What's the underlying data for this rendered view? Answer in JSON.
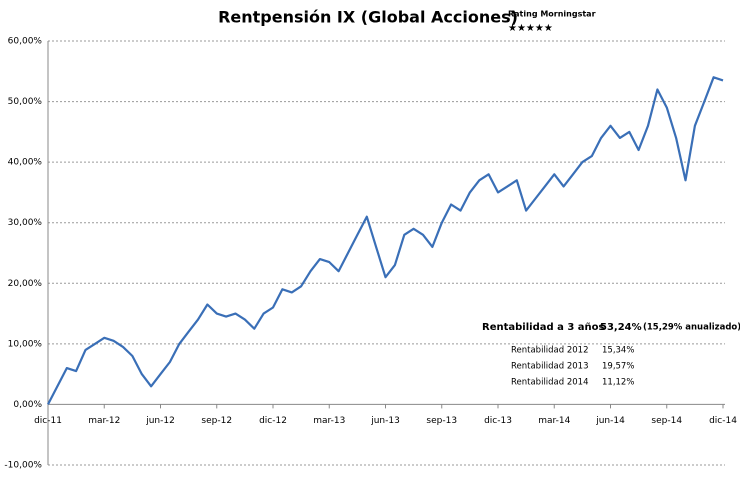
{
  "chart_data": {
    "type": "line",
    "title": "Rentpensión IX (Global Acciones)",
    "rating_label": "Rating Morningstar",
    "rating_stars": "★★★★★",
    "categories": [
      "dic-11",
      null,
      null,
      null,
      null,
      null,
      "mar-12",
      null,
      null,
      null,
      null,
      null,
      "jun-12",
      null,
      null,
      null,
      null,
      null,
      "sep-12",
      null,
      null,
      null,
      null,
      null,
      "dic-12",
      null,
      null,
      null,
      null,
      null,
      "mar-13",
      null,
      null,
      null,
      null,
      null,
      "jun-13",
      null,
      null,
      null,
      null,
      null,
      "sep-13",
      null,
      null,
      null,
      null,
      null,
      "dic-13",
      null,
      null,
      null,
      null,
      null,
      "mar-14",
      null,
      null,
      null,
      null,
      null,
      "jun-14",
      null,
      null,
      null,
      null,
      null,
      "sep-14",
      null,
      null,
      null,
      null,
      null,
      "dic-14"
    ],
    "values": [
      0,
      3,
      6,
      5.5,
      9,
      10,
      11,
      10.5,
      9.5,
      8,
      5,
      3,
      5,
      7,
      10,
      12,
      14,
      16.5,
      15,
      14.5,
      15,
      14,
      12.5,
      15,
      16,
      19,
      18.5,
      19.5,
      22,
      24,
      23.5,
      22,
      25,
      28,
      31,
      26,
      21,
      23,
      28,
      29,
      28,
      26,
      30,
      33,
      32,
      35,
      37,
      38,
      35,
      36,
      37,
      32,
      34,
      36,
      38,
      36,
      38,
      40,
      41,
      44,
      46,
      44,
      45,
      42,
      46,
      52,
      49,
      44,
      37,
      46,
      50,
      54,
      53.5
    ],
    "color": "#3a6fb7",
    "ylim": [
      -10,
      60
    ],
    "yticks": [
      {
        "value": -10,
        "label": "-10,00%"
      },
      {
        "value": 0,
        "label": "0,00%"
      },
      {
        "value": 10,
        "label": "10,00%"
      },
      {
        "value": 20,
        "label": "20,00%"
      },
      {
        "value": 30,
        "label": "30,00%"
      },
      {
        "value": 40,
        "label": "40,00%"
      },
      {
        "value": 50,
        "label": "50,00%"
      },
      {
        "value": 60,
        "label": "60,00%"
      }
    ],
    "grid": true,
    "summary": {
      "label": "Rentabilidad a 3 años",
      "value": "53,24%",
      "annualized": "(15,29% anualizado)",
      "rows": [
        [
          "Rentabilidad 2012",
          "15,34%"
        ],
        [
          "Rentabilidad 2013",
          "19,57%"
        ],
        [
          "Rentabilidad 2014",
          "11,12%"
        ]
      ]
    }
  }
}
